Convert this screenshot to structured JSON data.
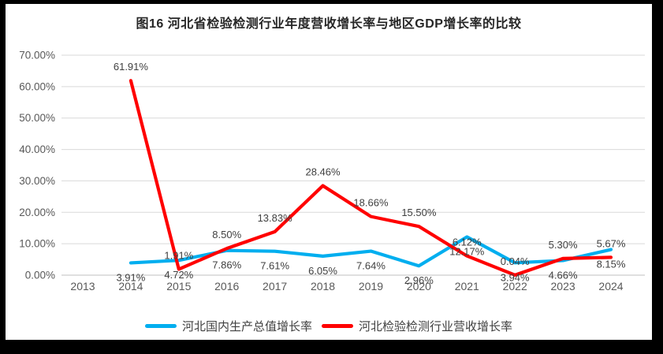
{
  "chart_data": {
    "type": "line",
    "title": "图16 河北省检验检测行业年度营收增长率与地区GDP增长率的比较",
    "categories": [
      "2013",
      "2014",
      "2015",
      "2016",
      "2017",
      "2018",
      "2019",
      "2020",
      "2021",
      "2022",
      "2023",
      "2024"
    ],
    "series": [
      {
        "name": "河北国内生产总值增长率",
        "color": "#00AEEF",
        "data_label_position": "below",
        "values": [
          null,
          3.91,
          4.72,
          7.86,
          7.61,
          6.05,
          7.64,
          2.96,
          12.17,
          3.94,
          4.66,
          8.15
        ]
      },
      {
        "name": "河北检验检测行业营收增长率",
        "color": "#FF0000",
        "data_label_position": "above",
        "values": [
          null,
          61.91,
          1.91,
          8.5,
          13.83,
          28.46,
          18.66,
          15.5,
          6.12,
          0.04,
          5.3,
          5.67
        ]
      }
    ],
    "ylim": [
      0,
      70
    ],
    "ytick_step": 10,
    "ytick_labels": [
      "0.00%",
      "10.00%",
      "20.00%",
      "30.00%",
      "40.00%",
      "50.00%",
      "60.00%",
      "70.00%"
    ],
    "data_label_format": "0.00%",
    "grid": "horizontal",
    "legend_position": "bottom"
  },
  "colors": {
    "frame_background": "#000000",
    "chart_background": "#FFFFFF",
    "gridline": "#D9D9D9",
    "axis_line": "#BFBFBF",
    "tick_label": "#595959",
    "data_label": "#404040",
    "title_text": "#262626"
  }
}
